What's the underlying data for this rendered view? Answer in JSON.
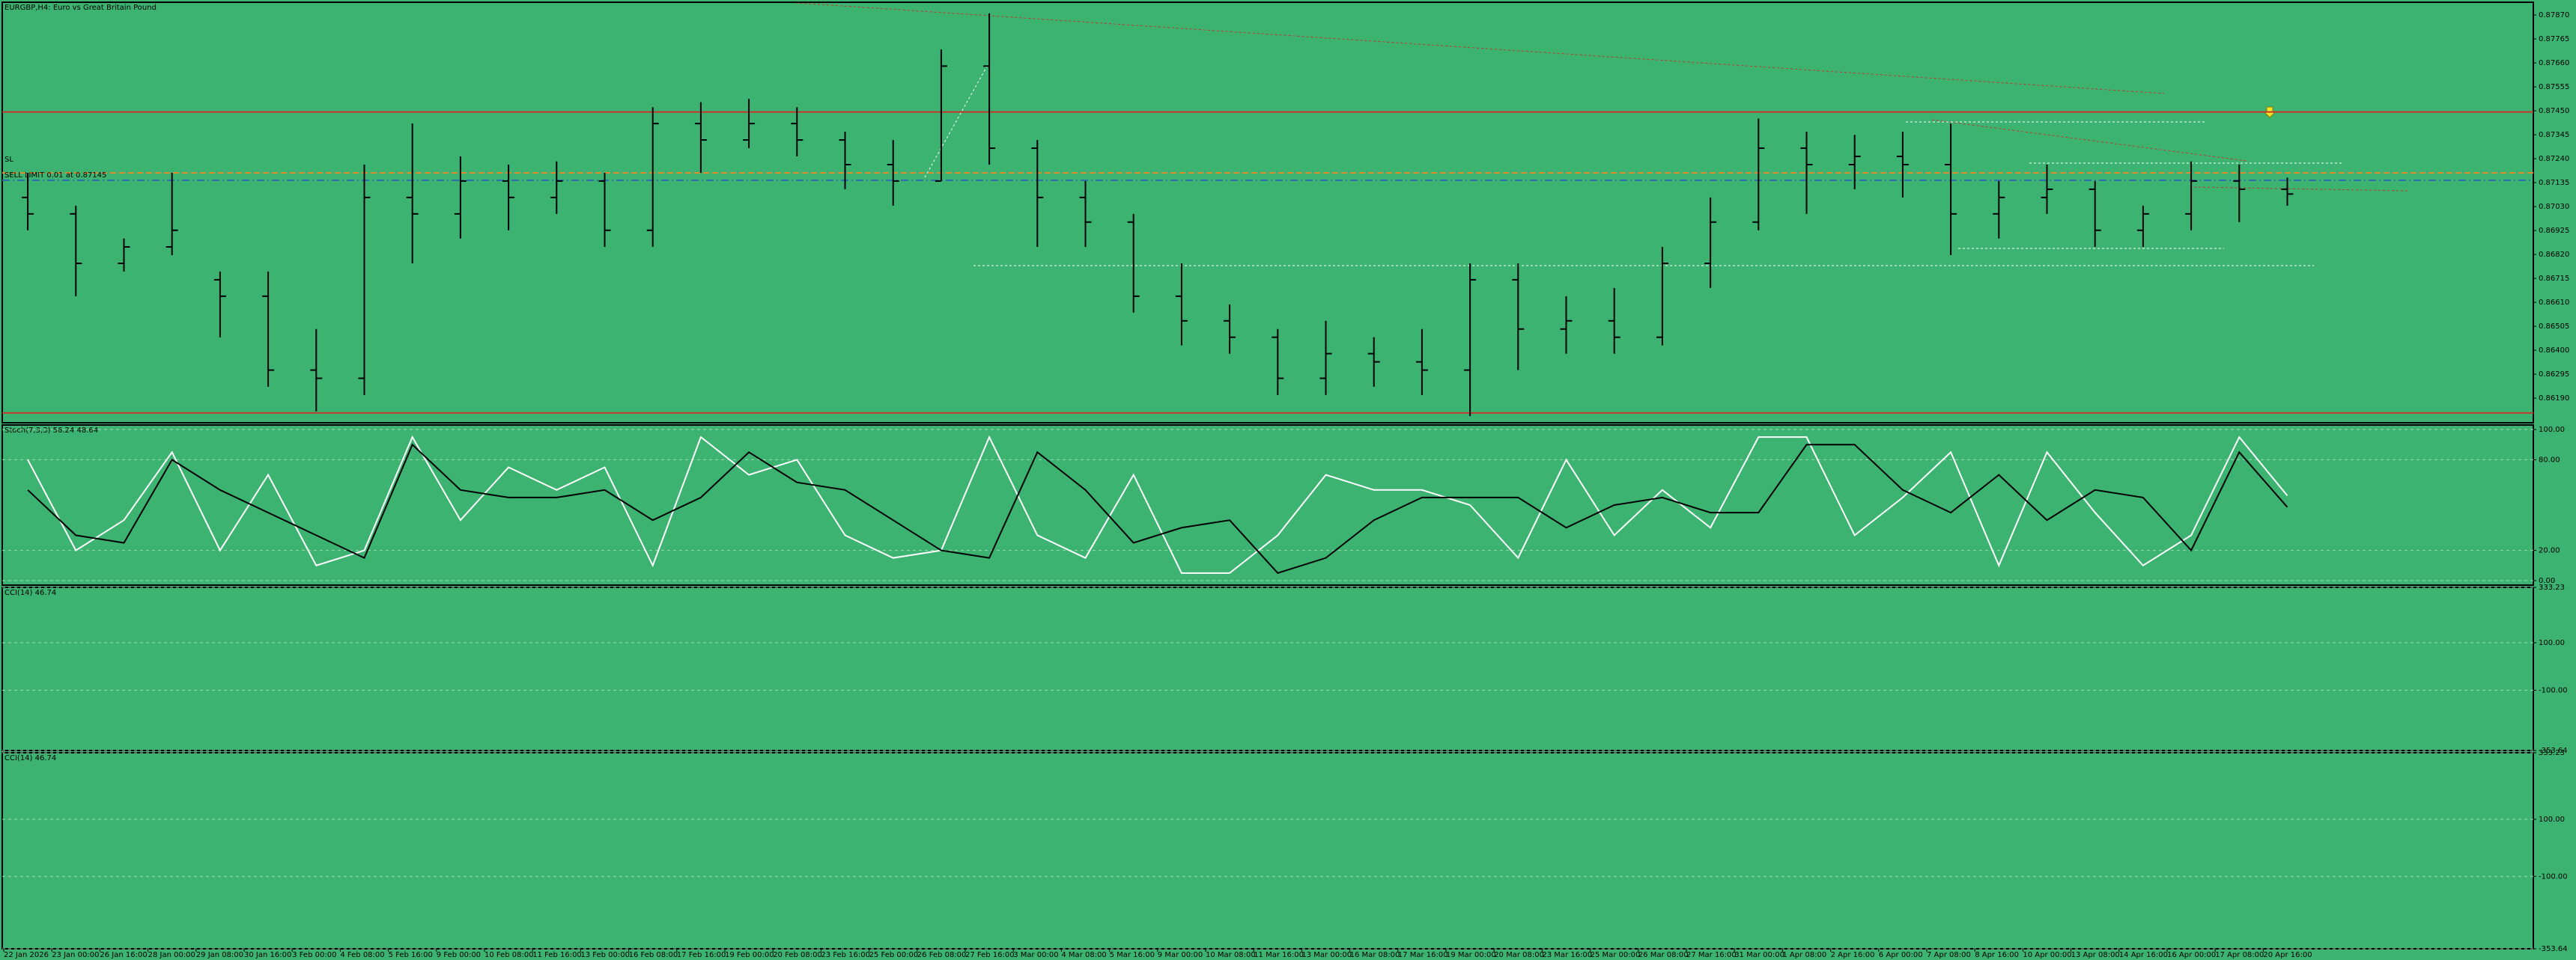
{
  "chart_data": [
    {
      "type": "ohlc",
      "title": "EURGBP,H4: Euro vs Great Britain Pound",
      "annotations": [
        "SL",
        "SELL LIMIT 0.01 at 0.87145"
      ],
      "categories": [
        "22 Jan 2026",
        "23 Jan 00:00",
        "26 Jan 16:00",
        "28 Jan 00:00",
        "29 Jan 08:00",
        "30 Jan 16:00",
        "3 Feb 00:00",
        "4 Feb 08:00",
        "5 Feb 16:00",
        "9 Feb 00:00",
        "10 Feb 08:00",
        "11 Feb 16:00",
        "13 Feb 00:00",
        "16 Feb 08:00",
        "17 Feb 16:00",
        "19 Feb 00:00",
        "20 Feb 08:00",
        "23 Feb 16:00",
        "25 Feb 00:00",
        "26 Feb 08:00",
        "27 Feb 16:00",
        "3 Mar 00:00",
        "4 Mar 08:00",
        "5 Mar 16:00",
        "9 Mar 00:00",
        "10 Mar 08:00",
        "11 Mar 16:00",
        "13 Mar 00:00",
        "16 Mar 08:00",
        "17 Mar 16:00",
        "19 Mar 00:00",
        "20 Mar 08:00",
        "23 Mar 16:00",
        "25 Mar 00:00",
        "26 Mar 08:00",
        "27 Mar 16:00",
        "31 Mar 00:00",
        "1 Apr 08:00",
        "2 Apr 16:00",
        "6 Apr 00:00",
        "7 Apr 08:00",
        "8 Apr 16:00",
        "10 Apr 00:00",
        "13 Apr 08:00",
        "14 Apr 16:00",
        "16 Apr 00:00",
        "17 Apr 08:00",
        "20 Apr 16:00"
      ],
      "open": [
        0.8707,
        0.86998,
        0.86781,
        0.86853,
        0.86709,
        0.86637,
        0.86313,
        0.86277,
        0.8707,
        0.86998,
        0.87142,
        0.8707,
        0.87142,
        0.86926,
        0.87394,
        0.87322,
        0.87394,
        0.87322,
        0.87214,
        0.87142,
        0.87646,
        0.87286,
        0.8707,
        0.86962,
        0.86637,
        0.86529,
        0.86457,
        0.86277,
        0.86385,
        0.86349,
        0.86313,
        0.86709,
        0.86493,
        0.86529,
        0.86457,
        0.86781,
        0.86962,
        0.87286,
        0.87214,
        0.8725,
        0.87214,
        0.86998,
        0.8707,
        0.87106,
        0.86926,
        0.86998,
        0.87142,
        0.87106
      ],
      "high": [
        0.87178,
        0.87034,
        0.8689,
        0.87178,
        0.86745,
        0.86745,
        0.86493,
        0.87214,
        0.87394,
        0.8725,
        0.87214,
        0.87228,
        0.87178,
        0.87466,
        0.87488,
        0.87502,
        0.87466,
        0.87358,
        0.87322,
        0.87719,
        0.87877,
        0.87322,
        0.87142,
        0.86998,
        0.86781,
        0.86601,
        0.86493,
        0.86529,
        0.86457,
        0.86493,
        0.86781,
        0.86781,
        0.86637,
        0.86673,
        0.86853,
        0.8707,
        0.87416,
        0.87358,
        0.87344,
        0.87358,
        0.87394,
        0.87142,
        0.87214,
        0.87142,
        0.87034,
        0.87228,
        0.87214,
        0.87157
      ],
      "low": [
        0.86926,
        0.86637,
        0.86745,
        0.86817,
        0.86457,
        0.8624,
        0.86132,
        0.86204,
        0.86781,
        0.8689,
        0.86926,
        0.86998,
        0.86853,
        0.86853,
        0.87178,
        0.87286,
        0.8725,
        0.87106,
        0.87034,
        0.87142,
        0.87214,
        0.86853,
        0.86853,
        0.86565,
        0.86421,
        0.86385,
        0.86204,
        0.86204,
        0.8624,
        0.86204,
        0.86111,
        0.86313,
        0.86385,
        0.86385,
        0.86421,
        0.86673,
        0.86926,
        0.86998,
        0.87106,
        0.8707,
        0.86817,
        0.8689,
        0.86998,
        0.86853,
        0.86853,
        0.86926,
        0.86962,
        0.87034
      ],
      "close": [
        0.86998,
        0.86781,
        0.86853,
        0.86926,
        0.86637,
        0.86313,
        0.86277,
        0.8707,
        0.86998,
        0.87142,
        0.8707,
        0.87142,
        0.86926,
        0.87394,
        0.87322,
        0.87394,
        0.87322,
        0.87214,
        0.87142,
        0.87646,
        0.87286,
        0.8707,
        0.86962,
        0.86637,
        0.86529,
        0.86457,
        0.86277,
        0.86385,
        0.86349,
        0.86313,
        0.86709,
        0.86493,
        0.86529,
        0.86457,
        0.86781,
        0.86962,
        0.87286,
        0.87214,
        0.8725,
        0.87214,
        0.86998,
        0.8707,
        0.87106,
        0.86926,
        0.86998,
        0.87142,
        0.87106,
        0.87085
      ],
      "levels": [
        {
          "value": 0.87445,
          "color": "#c0392b"
        },
        {
          "value": 0.87178,
          "color": "#e08a2c"
        },
        {
          "value": 0.87145,
          "color": "#2e6fb0"
        },
        {
          "value": 0.86125,
          "color": "#c0392b"
        }
      ],
      "ylim": [
        0.86082,
        0.87926
      ],
      "yticks": [
        {
          "value": 0.8787,
          "label": "0.87870"
        },
        {
          "value": 0.87765,
          "label": "0.87765"
        },
        {
          "value": 0.8766,
          "label": "0.87660"
        },
        {
          "value": 0.87555,
          "label": "0.87555"
        },
        {
          "value": 0.8745,
          "label": "0.87450"
        },
        {
          "value": 0.87345,
          "label": "0.87345"
        },
        {
          "value": 0.8724,
          "label": "0.87240"
        },
        {
          "value": 0.87135,
          "label": "0.87135"
        },
        {
          "value": 0.8703,
          "label": "0.87030"
        },
        {
          "value": 0.86925,
          "label": "0.86925"
        },
        {
          "value": 0.8682,
          "label": "0.86820"
        },
        {
          "value": 0.86715,
          "label": "0.86715"
        },
        {
          "value": 0.8661,
          "label": "0.86610"
        },
        {
          "value": 0.86505,
          "label": "0.86505"
        },
        {
          "value": 0.864,
          "label": "0.86400"
        },
        {
          "value": 0.86295,
          "label": "0.86295"
        },
        {
          "value": 0.8619,
          "label": "0.86190"
        }
      ]
    },
    {
      "type": "line",
      "title": "Stoch(7,3,3) 56.24 48.64",
      "series": [
        {
          "name": "%K",
          "color": "#ffffff",
          "values": [
            80,
            20,
            40,
            85,
            20,
            70,
            10,
            20,
            95,
            40,
            75,
            60,
            75,
            10,
            95,
            70,
            80,
            30,
            15,
            20,
            95,
            30,
            15,
            70,
            5,
            5,
            30,
            70,
            60,
            60,
            50,
            15,
            80,
            30,
            60,
            35,
            95,
            95,
            30,
            55,
            85,
            10,
            85,
            45,
            10,
            30,
            95,
            56.24
          ]
        },
        {
          "name": "%D",
          "color": "#000000",
          "values": [
            60,
            30,
            25,
            80,
            60,
            45,
            30,
            15,
            90,
            60,
            55,
            55,
            60,
            40,
            55,
            85,
            65,
            60,
            40,
            20,
            15,
            85,
            60,
            25,
            35,
            40,
            5,
            15,
            40,
            55,
            55,
            55,
            35,
            50,
            55,
            45,
            45,
            90,
            90,
            60,
            45,
            70,
            40,
            60,
            55,
            20,
            85,
            48.64
          ]
        }
      ],
      "ylim": [
        -3,
        103
      ],
      "yticks": [
        {
          "value": 100,
          "label": "100.00"
        },
        {
          "value": 80,
          "label": "80.00"
        },
        {
          "value": 20,
          "label": "20.00"
        },
        {
          "value": 0,
          "label": "0.00"
        }
      ]
    },
    {
      "type": "line",
      "title": "CCI(14) 46.74",
      "series": [],
      "ylim": [
        -353.64,
        333.23
      ],
      "yticks": [
        {
          "value": 333.23,
          "label": "333.23"
        },
        {
          "value": 100,
          "label": "100.00"
        },
        {
          "value": -100,
          "label": "-100.00"
        },
        {
          "value": -353.64,
          "label": "-353.64"
        }
      ]
    },
    {
      "type": "line",
      "title": "CCI(14) 46.74",
      "series": [],
      "ylim": [
        -353.64,
        333.23
      ],
      "yticks": [
        {
          "value": 333.23,
          "label": "333.23"
        },
        {
          "value": 100,
          "label": "100.00"
        },
        {
          "value": -100,
          "label": "-100.00"
        },
        {
          "value": -353.64,
          "label": "-353.64"
        }
      ]
    }
  ]
}
